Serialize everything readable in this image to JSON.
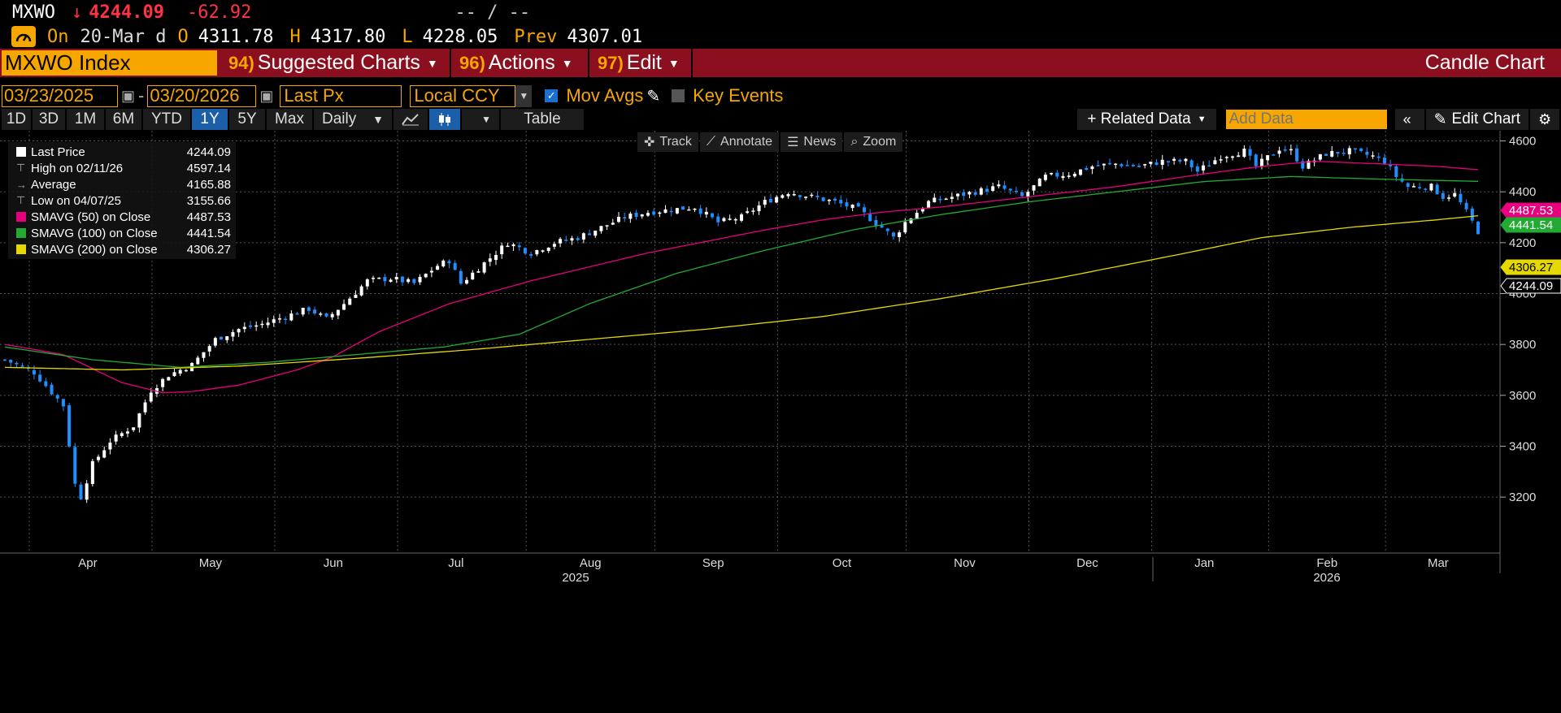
{
  "header": {
    "ticker": "MXWO",
    "arrow": "↓",
    "last": "4244.09",
    "change": "-62.92",
    "quote_tail": "-- / --",
    "on_label": "On",
    "date": "20-Mar d",
    "open_label": "O",
    "open": "4311.78",
    "high_label": "H",
    "high": "4317.80",
    "low_label": "L",
    "low": "4228.05",
    "prev_label": "Prev",
    "prev": "4307.01"
  },
  "menu": {
    "security": "MXWO Index",
    "items": [
      {
        "num": "94)",
        "label": "Suggested Charts"
      },
      {
        "num": "96)",
        "label": "Actions"
      },
      {
        "num": "97)",
        "label": "Edit"
      }
    ],
    "chart_type": "Candle Chart"
  },
  "controls": {
    "start_date": "03/23/2025",
    "end_date": "03/20/2026",
    "field": "Last Px",
    "currency": "Local CCY",
    "mov_avgs": "Mov Avgs",
    "key_events": "Key Events"
  },
  "toolbar": {
    "periods": [
      "1D",
      "3D",
      "1M",
      "6M",
      "YTD",
      "1Y",
      "5Y",
      "Max"
    ],
    "selected_period": "1Y",
    "frequency": "Daily",
    "table": "Table",
    "related": "+ Related Data",
    "add_data_placeholder": "Add Data",
    "edit_chart": "Edit Chart"
  },
  "chart_tools": [
    "Track",
    "Annotate",
    "News",
    "Zoom"
  ],
  "colors": {
    "sma50": "#e6007e",
    "sma100": "#22aa33",
    "sma200": "#e5d800",
    "up": "#ffffff",
    "down": "#1e8fff",
    "accent": "#f7a600",
    "menu_bg": "#8b0f1e"
  },
  "legend": [
    {
      "name": "Last Price",
      "value": "4244.09"
    },
    {
      "name": "High on 02/11/26",
      "value": "4597.14"
    },
    {
      "name": "Average",
      "value": "4165.88"
    },
    {
      "name": "Low on 04/07/25",
      "value": "3155.66"
    },
    {
      "name": "SMAVG (50)  on Close",
      "value": "4487.53"
    },
    {
      "name": "SMAVG (100)  on Close",
      "value": "4441.54"
    },
    {
      "name": "SMAVG (200)  on Close",
      "value": "4306.27"
    }
  ],
  "chart_data": {
    "type": "candlestick",
    "title": "",
    "xlabel": "",
    "ylabel": "",
    "ylim": [
      3060,
      4640
    ],
    "yticks": [
      3200,
      3400,
      3600,
      3800,
      4000,
      4200,
      4400,
      4600
    ],
    "x_month_labels": [
      "Apr",
      "May",
      "Jun",
      "Jul",
      "Aug",
      "Sep",
      "Oct",
      "Nov",
      "Dec",
      "Jan",
      "Feb",
      "Mar"
    ],
    "x_year_labels": [
      "2025",
      "2026"
    ],
    "grid": true,
    "price_keypoints": [
      [
        0,
        3740
      ],
      [
        5,
        3690
      ],
      [
        10,
        3560
      ],
      [
        12,
        3250
      ],
      [
        13,
        3200
      ],
      [
        15,
        3330
      ],
      [
        18,
        3420
      ],
      [
        22,
        3480
      ],
      [
        25,
        3620
      ],
      [
        28,
        3680
      ],
      [
        32,
        3720
      ],
      [
        36,
        3820
      ],
      [
        40,
        3860
      ],
      [
        44,
        3880
      ],
      [
        48,
        3910
      ],
      [
        52,
        3940
      ],
      [
        55,
        3900
      ],
      [
        58,
        3960
      ],
      [
        62,
        4050
      ],
      [
        66,
        4060
      ],
      [
        70,
        4040
      ],
      [
        74,
        4110
      ],
      [
        76,
        4130
      ],
      [
        78,
        4040
      ],
      [
        82,
        4120
      ],
      [
        86,
        4200
      ],
      [
        90,
        4160
      ],
      [
        94,
        4200
      ],
      [
        98,
        4220
      ],
      [
        102,
        4260
      ],
      [
        106,
        4300
      ],
      [
        110,
        4320
      ],
      [
        114,
        4330
      ],
      [
        118,
        4340
      ],
      [
        122,
        4280
      ],
      [
        126,
        4300
      ],
      [
        130,
        4360
      ],
      [
        134,
        4400
      ],
      [
        138,
        4380
      ],
      [
        142,
        4360
      ],
      [
        146,
        4330
      ],
      [
        150,
        4260
      ],
      [
        152,
        4220
      ],
      [
        154,
        4280
      ],
      [
        158,
        4360
      ],
      [
        162,
        4380
      ],
      [
        166,
        4400
      ],
      [
        170,
        4420
      ],
      [
        174,
        4380
      ],
      [
        178,
        4460
      ],
      [
        182,
        4470
      ],
      [
        186,
        4500
      ],
      [
        190,
        4510
      ],
      [
        194,
        4500
      ],
      [
        198,
        4520
      ],
      [
        202,
        4520
      ],
      [
        204,
        4480
      ],
      [
        208,
        4540
      ],
      [
        212,
        4560
      ],
      [
        214,
        4500
      ],
      [
        218,
        4570
      ],
      [
        220,
        4560
      ],
      [
        222,
        4500
      ],
      [
        226,
        4550
      ],
      [
        230,
        4560
      ],
      [
        234,
        4540
      ],
      [
        236,
        4520
      ],
      [
        238,
        4460
      ],
      [
        240,
        4420
      ],
      [
        244,
        4420
      ],
      [
        246,
        4380
      ],
      [
        248,
        4390
      ],
      [
        250,
        4320
      ],
      [
        252,
        4244
      ]
    ],
    "series": [
      {
        "name": "Last Price",
        "last": 4244.09
      },
      {
        "name": "SMAVG (50)",
        "last": 4487.53,
        "keypoints": [
          [
            0,
            3800
          ],
          [
            10,
            3760
          ],
          [
            20,
            3650
          ],
          [
            27,
            3610
          ],
          [
            32,
            3615
          ],
          [
            40,
            3640
          ],
          [
            50,
            3700
          ],
          [
            56,
            3750
          ],
          [
            64,
            3850
          ],
          [
            76,
            3960
          ],
          [
            90,
            4050
          ],
          [
            110,
            4160
          ],
          [
            130,
            4250
          ],
          [
            140,
            4290
          ],
          [
            150,
            4320
          ],
          [
            160,
            4340
          ],
          [
            175,
            4380
          ],
          [
            190,
            4420
          ],
          [
            205,
            4470
          ],
          [
            215,
            4500
          ],
          [
            224,
            4520
          ],
          [
            235,
            4510
          ],
          [
            245,
            4500
          ],
          [
            252,
            4487
          ]
        ]
      },
      {
        "name": "SMAVG (100)",
        "last": 4441.54,
        "keypoints": [
          [
            0,
            3790
          ],
          [
            15,
            3740
          ],
          [
            30,
            3710
          ],
          [
            45,
            3730
          ],
          [
            60,
            3760
          ],
          [
            75,
            3790
          ],
          [
            88,
            3840
          ],
          [
            100,
            3960
          ],
          [
            115,
            4080
          ],
          [
            130,
            4170
          ],
          [
            145,
            4250
          ],
          [
            160,
            4310
          ],
          [
            175,
            4360
          ],
          [
            190,
            4400
          ],
          [
            205,
            4440
          ],
          [
            220,
            4460
          ],
          [
            235,
            4450
          ],
          [
            252,
            4441
          ]
        ]
      },
      {
        "name": "SMAVG (200)",
        "last": 4306.27,
        "keypoints": [
          [
            0,
            3710
          ],
          [
            20,
            3700
          ],
          [
            40,
            3715
          ],
          [
            60,
            3745
          ],
          [
            80,
            3780
          ],
          [
            100,
            3820
          ],
          [
            120,
            3860
          ],
          [
            140,
            3910
          ],
          [
            160,
            3980
          ],
          [
            180,
            4060
          ],
          [
            200,
            4150
          ],
          [
            215,
            4220
          ],
          [
            230,
            4260
          ],
          [
            245,
            4290
          ],
          [
            252,
            4306
          ]
        ]
      }
    ]
  }
}
